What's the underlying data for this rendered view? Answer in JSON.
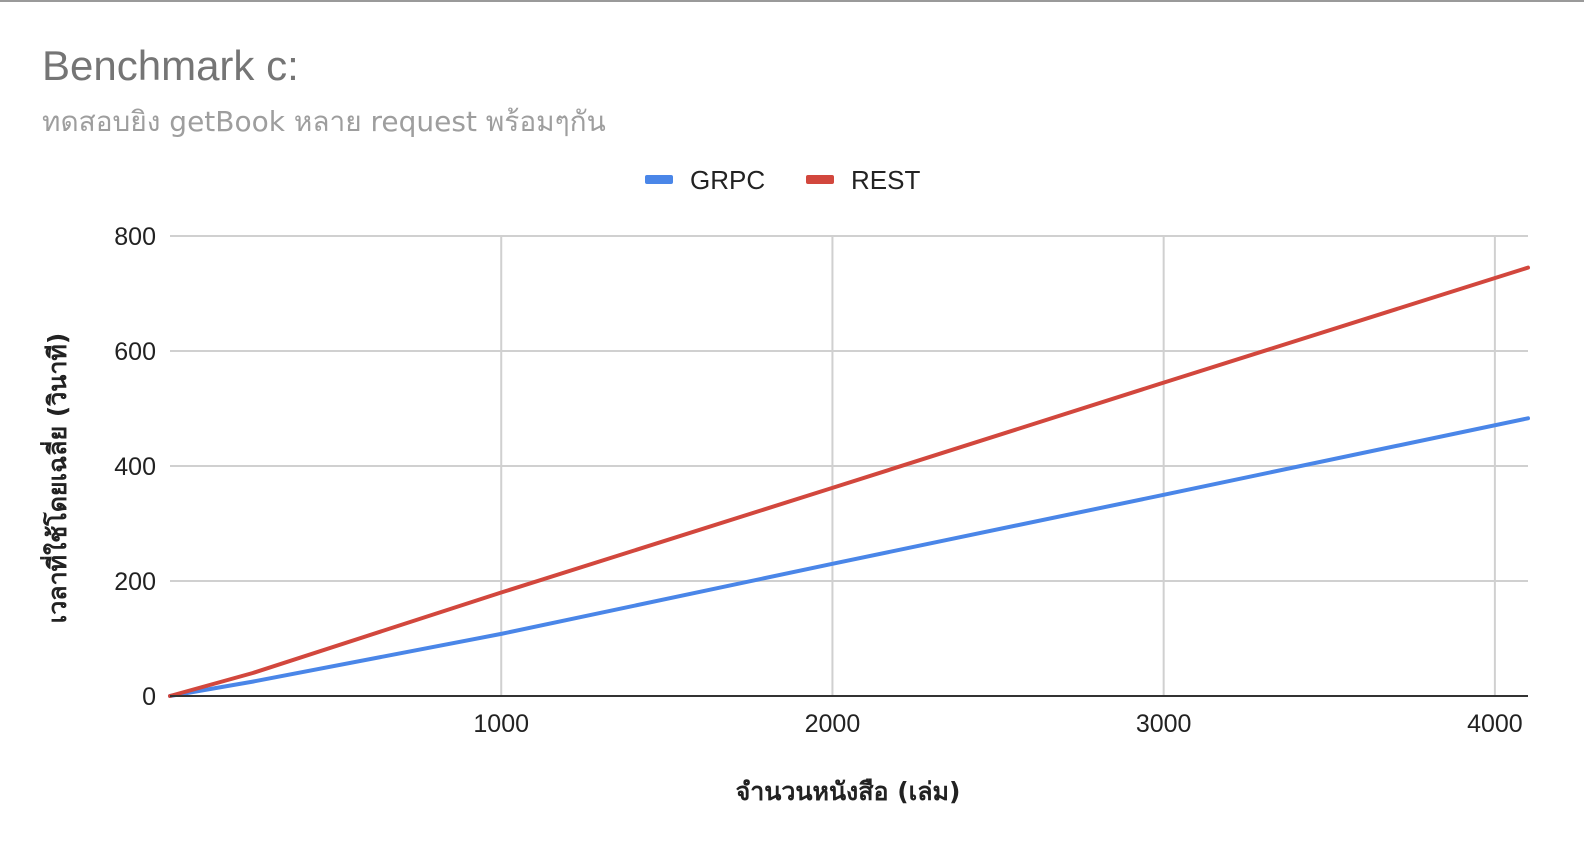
{
  "chart_data": {
    "type": "line",
    "title": "Benchmark c:",
    "subtitle": "ทดสอบยิง getBook หลาย request พร้อมๆกัน",
    "xlabel": "จำนวนหนังสือ (เล่ม)",
    "ylabel": "เวลาที่ใช้โดยเฉลี่ย (วินาที)",
    "xlim": [
      0,
      4100
    ],
    "ylim": [
      0,
      800
    ],
    "x_ticks": [
      1000,
      2000,
      3000,
      4000
    ],
    "x_tick_labels": [
      "1000",
      "2000",
      "3000",
      "4000"
    ],
    "y_ticks": [
      0,
      200,
      400,
      600,
      800
    ],
    "y_tick_labels": [
      "0",
      "200",
      "400",
      "600",
      "800"
    ],
    "grid": true,
    "legend_position": "top-center",
    "series": [
      {
        "name": "GRPC",
        "color": "#4a86e8",
        "x": [
          0,
          250,
          1000,
          2000,
          3000,
          4100
        ],
        "y": [
          0,
          25,
          108,
          230,
          350,
          483
        ]
      },
      {
        "name": "REST",
        "color": "#d2473d",
        "x": [
          0,
          250,
          1000,
          2000,
          3000,
          4100
        ],
        "y": [
          0,
          40,
          180,
          362,
          545,
          745
        ]
      }
    ]
  }
}
